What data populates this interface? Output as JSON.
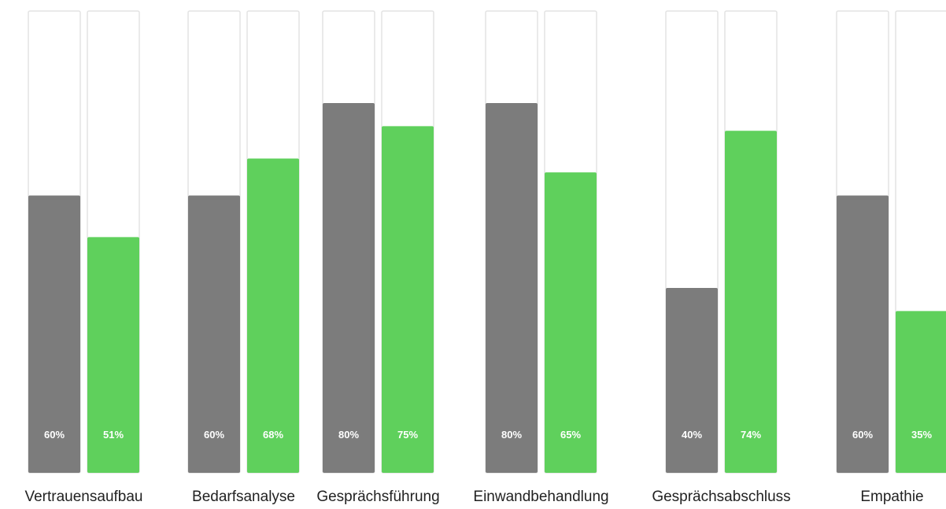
{
  "chart_data": {
    "type": "bar",
    "categories": [
      "Vertrauensaufbau",
      "Bedarfsanalyse",
      "Gesprächsführung",
      "Einwandbehandlung",
      "Gesprächsabschluss",
      "Empathie"
    ],
    "series": [
      {
        "values": [
          60,
          60,
          80,
          80,
          40,
          60
        ],
        "labels": [
          "60%",
          "60%",
          "80%",
          "80%",
          "40%",
          "60%"
        ],
        "color": "#7c7c7c"
      },
      {
        "values": [
          51,
          68,
          75,
          65,
          74,
          35
        ],
        "labels": [
          "51%",
          "68%",
          "75%",
          "65%",
          "74%",
          "35%"
        ],
        "color": "#5fd05c"
      }
    ],
    "ylim": [
      0,
      100
    ],
    "grid": false,
    "legend": "none",
    "track_color": "#ffffff",
    "track_border_color": "#e3e3e3"
  }
}
